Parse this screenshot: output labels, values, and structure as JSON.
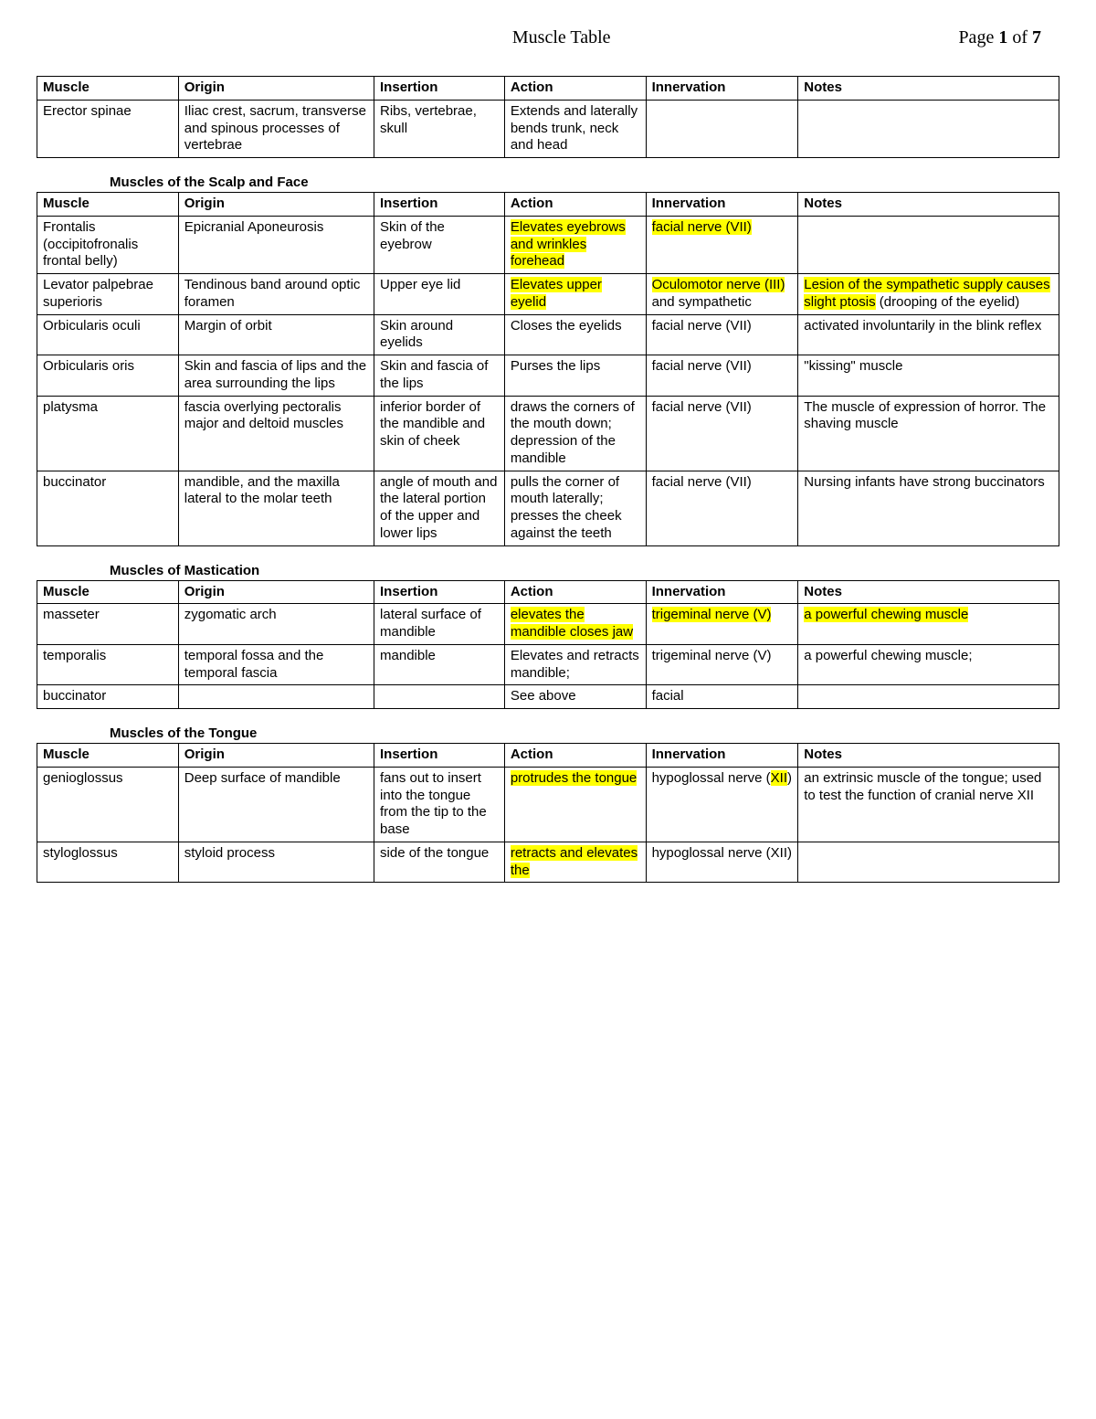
{
  "header": {
    "title": "Muscle Table",
    "page_prefix": "Page ",
    "page_num": "1",
    "page_of": " of ",
    "page_total": "7"
  },
  "columns": [
    "Muscle",
    "Origin",
    "Insertion",
    "Action",
    "Innervation",
    "Notes"
  ],
  "colors": {
    "highlight": "#ffff00",
    "text": "#000000",
    "border": "#000000",
    "background": "#ffffff"
  },
  "sections": [
    {
      "title": "",
      "rows": [
        {
          "muscle": "Erector spinae",
          "origin": "Iliac crest, sacrum, transverse and spinous processes of vertebrae",
          "insertion": "Ribs, vertebrae, skull",
          "action": "Extends and laterally bends trunk, neck and head",
          "innervation": "",
          "notes": ""
        }
      ]
    },
    {
      "title": "Muscles of the Scalp and Face",
      "rows": [
        {
          "muscle": "Frontalis (occipitofronalis frontal belly)",
          "origin": "Epicranial Aponeurosis",
          "insertion": "Skin of the eyebrow",
          "action_hl": "Elevates eyebrows and wrinkles forehead",
          "innervation_hl": "facial nerve (VII)",
          "notes": ""
        },
        {
          "muscle": "Levator palpebrae superioris",
          "origin": "Tendinous band around optic foramen",
          "insertion": "Upper eye lid",
          "action_hl": "Elevates upper eyelid",
          "innervation_hl": "Oculomotor nerve (III)",
          "innervation_post": " and sympathetic",
          "notes_hl": "Lesion of the sympathetic supply causes slight ptosis",
          "notes_post": " (drooping of the eyelid)"
        },
        {
          "muscle": "Orbicularis oculi",
          "origin": "Margin of orbit",
          "insertion": "Skin around eyelids",
          "action": "Closes the eyelids",
          "innervation": "facial nerve (VII)",
          "notes": "activated involuntarily in the blink reflex"
        },
        {
          "muscle": "Orbicularis oris",
          "origin": "Skin and fascia of lips and the area surrounding the lips",
          "insertion": "Skin and fascia of the lips",
          "action": "Purses the lips",
          "innervation": "facial nerve (VII)",
          "notes": "\"kissing\" muscle"
        },
        {
          "muscle": "platysma",
          "origin": "fascia overlying pectoralis major and deltoid muscles",
          "insertion": "inferior border of the mandible and skin of cheek",
          "action": "draws the corners of the mouth down; depression of the mandible",
          "innervation": "facial nerve (VII)",
          "notes": "The muscle of expression of horror. The shaving muscle"
        },
        {
          "muscle": "buccinator",
          "origin": "mandible, and the maxilla lateral to the molar teeth",
          "insertion": "angle of mouth and the lateral portion of the upper and lower lips",
          "action": "pulls the corner of mouth laterally; presses the cheek against the teeth",
          "innervation": "facial nerve (VII)",
          "notes": "Nursing infants have strong buccinators"
        }
      ]
    },
    {
      "title": "Muscles of Mastication",
      "rows": [
        {
          "muscle": "masseter",
          "origin": "zygomatic arch",
          "insertion": "lateral surface of mandible",
          "action_hl": "elevates the mandible closes jaw",
          "innervation_hl": "trigeminal nerve (V)",
          "notes_hl": "a powerful chewing muscle"
        },
        {
          "muscle": "temporalis",
          "origin": "temporal fossa and the temporal fascia",
          "insertion": "mandible",
          "action": "Elevates and retracts mandible;",
          "innervation": "trigeminal nerve (V)",
          "notes": "a powerful chewing muscle;"
        },
        {
          "muscle": "buccinator",
          "origin": "",
          "insertion": "",
          "action": "See above",
          "innervation": "facial",
          "notes": ""
        }
      ]
    },
    {
      "title": "Muscles of the Tongue",
      "rows": [
        {
          "muscle": "genioglossus",
          "origin": "Deep surface of mandible",
          "insertion": "fans out to insert into the tongue from the tip to the base",
          "action_hl": "protrudes the tongue",
          "innervation_pre": "hypoglossal nerve (",
          "innervation_hl": "XII",
          "innervation_post": ")",
          "notes": "an extrinsic muscle of the tongue; used to test the function of cranial nerve XII"
        },
        {
          "muscle": "styloglossus",
          "origin": "styloid process",
          "insertion": " side of the tongue",
          "action_hl": "retracts and elevates the",
          "innervation": "hypoglossal nerve (XII)",
          "notes": ""
        }
      ]
    }
  ]
}
